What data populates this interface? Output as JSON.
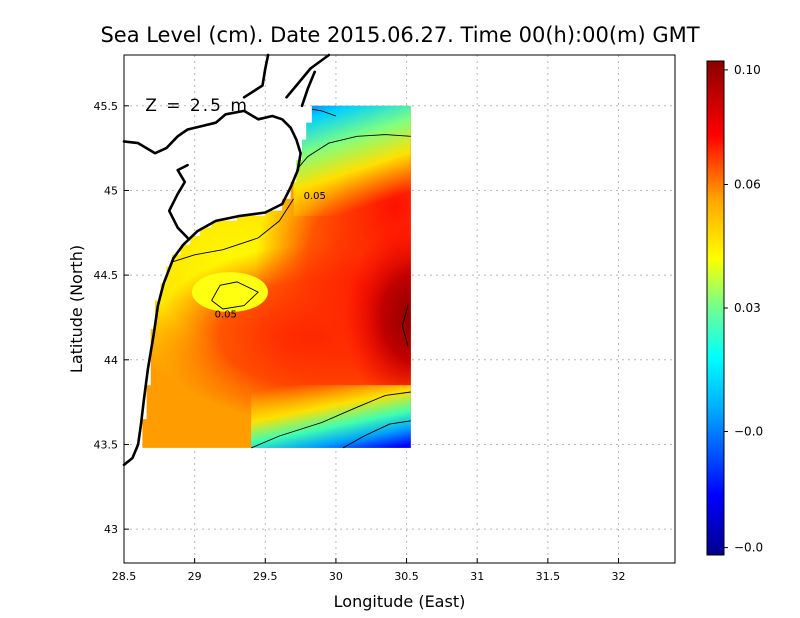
{
  "chart_data": {
    "type": "heatmap",
    "title": "Sea Level (cm). Date 2015.06.27. Time 00(h):00(m) GMT",
    "xlabel": "Longitude (East)",
    "ylabel": "Latitude (North)",
    "xlim": [
      28.5,
      32.4
    ],
    "ylim": [
      42.8,
      45.8
    ],
    "x_ticks": [
      "28.5",
      "29",
      "29.5",
      "30",
      "30.5",
      "31",
      "31.5",
      "32"
    ],
    "y_ticks": [
      "43",
      "43.5",
      "44",
      "44.5",
      "45",
      "45.5"
    ],
    "grid": true,
    "annotation": "Z = 2.5 m",
    "contour_labels": [
      {
        "text": "0.05",
        "lon": 29.85,
        "lat": 44.95
      },
      {
        "text": "0.05",
        "lon": 29.22,
        "lat": 44.25
      }
    ],
    "colorbar": {
      "ticks": [
        "0.10",
        "0.06",
        "0.03",
        "−0.0",
        "−0.0"
      ],
      "colors": [
        "#00008b",
        "#0000ff",
        "#00b0ff",
        "#00ffff",
        "#70ff90",
        "#ffff00",
        "#ffa500",
        "#ff0000",
        "#8b0000"
      ]
    },
    "data_extent": {
      "lon": [
        28.63,
        30.53
      ],
      "lat": [
        43.48,
        45.5
      ]
    },
    "values_cm_approx": [
      {
        "lon": 30.5,
        "lat": 44.2,
        "value": 0.1
      },
      {
        "lon": 30.3,
        "lat": 44.6,
        "value": 0.085
      },
      {
        "lon": 29.6,
        "lat": 44.2,
        "value": 0.07
      },
      {
        "lon": 29.0,
        "lat": 44.0,
        "value": 0.06
      },
      {
        "lon": 29.25,
        "lat": 44.4,
        "value": 0.05
      },
      {
        "lon": 29.9,
        "lat": 45.3,
        "value": 0.035
      },
      {
        "lon": 29.85,
        "lat": 45.45,
        "value": 0.0
      },
      {
        "lon": 30.2,
        "lat": 43.6,
        "value": 0.035
      },
      {
        "lon": 30.45,
        "lat": 43.5,
        "value": -0.02
      }
    ]
  }
}
